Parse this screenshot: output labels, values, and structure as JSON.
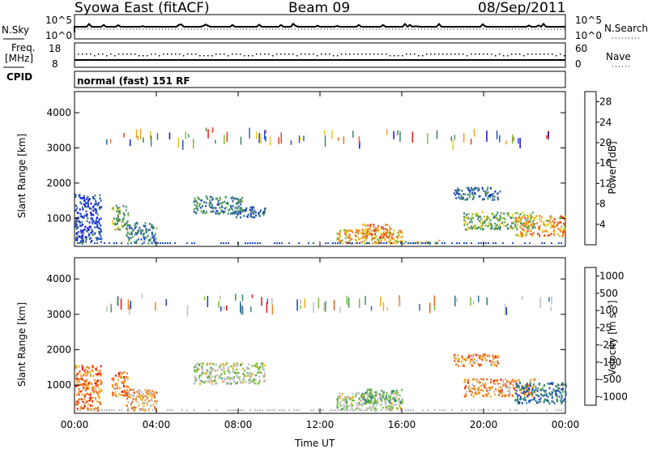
{
  "header": {
    "station": "Syowa East (fitACF)",
    "beam": "Beam 09",
    "date": "08/Sep/2011"
  },
  "strips": {
    "nsky_label": "N.Sky",
    "nsky_ticks": [
      "10^5",
      "10^0"
    ],
    "nsearch_label": "N.Search",
    "nsearch_ticks": [
      "10^5",
      "10^0"
    ],
    "freq_label_1": "Freq.",
    "freq_label_2": "[MHz]",
    "freq_ticks": [
      "18",
      "8"
    ],
    "nave_label": "Nave",
    "nave_ticks": [
      "60",
      "0"
    ],
    "cpid_label": "CPID",
    "cpid_text": "normal (fast) 151 RF"
  },
  "colors": {
    "power_scale": [
      "#1010e8",
      "#2050c8",
      "#2e5ea8",
      "#3f7f70",
      "#4a9a60",
      "#86b83c",
      "#e8c81a",
      "#f0a020",
      "#f07020",
      "#e84020",
      "#e01818"
    ],
    "velocity_scale": [
      "#1a3fb8",
      "#2d6aa8",
      "#3a8a78",
      "#3a9a40",
      "#70c030",
      "#bdbdbd",
      "#bdbdbd",
      "#f0b020",
      "#f08020",
      "#f06018",
      "#e81010"
    ]
  },
  "chart_data": [
    {
      "type": "heatmap",
      "name": "power",
      "ylabel": "Slant Range [km]",
      "yticks": [
        1000,
        2000,
        3000,
        4000
      ],
      "ylim": [
        200,
        4600
      ],
      "xticks": [
        "00:00",
        "04:00",
        "08:00",
        "12:00",
        "16:00",
        "20:00",
        "00:00"
      ],
      "xlim_hours": [
        0,
        24
      ],
      "colorbar_label": "Power [dB]",
      "colorbar_ticks": [
        "4",
        "8",
        "12",
        "16",
        "20",
        "24",
        "28"
      ],
      "regions": [
        {
          "t0": 0.0,
          "t1": 1.3,
          "r0": 300,
          "r1": 1700,
          "level": 0.15
        },
        {
          "t0": 1.8,
          "t1": 2.6,
          "r0": 700,
          "r1": 1400,
          "level": 0.45
        },
        {
          "t0": 2.5,
          "t1": 4.0,
          "r0": 300,
          "r1": 900,
          "level": 0.3
        },
        {
          "t0": 5.8,
          "t1": 8.2,
          "r0": 1150,
          "r1": 1650,
          "level": 0.3
        },
        {
          "t0": 7.8,
          "t1": 9.3,
          "r0": 1050,
          "r1": 1350,
          "level": 0.25
        },
        {
          "t0": 12.8,
          "t1": 16.0,
          "r0": 300,
          "r1": 700,
          "level": 0.65
        },
        {
          "t0": 14.0,
          "t1": 15.5,
          "r0": 450,
          "r1": 850,
          "level": 0.75
        },
        {
          "t0": 15.5,
          "t1": 18.0,
          "r0": 300,
          "r1": 400,
          "level": 0.55
        },
        {
          "t0": 18.5,
          "t1": 20.8,
          "r0": 1550,
          "r1": 1900,
          "level": 0.25
        },
        {
          "t0": 19.0,
          "t1": 22.5,
          "r0": 700,
          "r1": 1200,
          "level": 0.45
        },
        {
          "t0": 21.5,
          "t1": 24.0,
          "r0": 500,
          "r1": 1100,
          "level": 0.7
        }
      ]
    },
    {
      "type": "heatmap",
      "name": "velocity",
      "ylabel": "Slant Range [km]",
      "yticks": [
        1000,
        2000,
        3000,
        4000
      ],
      "ylim": [
        200,
        4600
      ],
      "xticks": [
        "00:00",
        "04:00",
        "08:00",
        "12:00",
        "16:00",
        "20:00",
        "00:00"
      ],
      "xlim_hours": [
        0,
        24
      ],
      "xlabel": "Time UT",
      "colorbar_label": "Velocity [m s⁻¹]",
      "colorbar_ticks": [
        "1000",
        "500",
        "100",
        "25",
        "-25",
        "-100",
        "-500",
        "-1000"
      ],
      "regions": [
        {
          "t0": 0.0,
          "t1": 1.3,
          "r0": 300,
          "r1": 1600,
          "level": 0.8
        },
        {
          "t0": 1.8,
          "t1": 2.6,
          "r0": 700,
          "r1": 1400,
          "level": 0.8
        },
        {
          "t0": 2.5,
          "t1": 4.0,
          "r0": 300,
          "r1": 900,
          "level": 0.7
        },
        {
          "t0": 5.8,
          "t1": 9.3,
          "r0": 1050,
          "r1": 1650,
          "level": 0.5
        },
        {
          "t0": 12.8,
          "t1": 16.0,
          "r0": 300,
          "r1": 800,
          "level": 0.5
        },
        {
          "t0": 14.0,
          "t1": 16.0,
          "r0": 500,
          "r1": 900,
          "level": 0.35
        },
        {
          "t0": 18.5,
          "t1": 20.8,
          "r0": 1550,
          "r1": 1900,
          "level": 0.75
        },
        {
          "t0": 19.0,
          "t1": 22.5,
          "r0": 700,
          "r1": 1200,
          "level": 0.75
        },
        {
          "t0": 21.5,
          "t1": 24.0,
          "r0": 500,
          "r1": 1100,
          "level": 0.15
        }
      ]
    }
  ]
}
